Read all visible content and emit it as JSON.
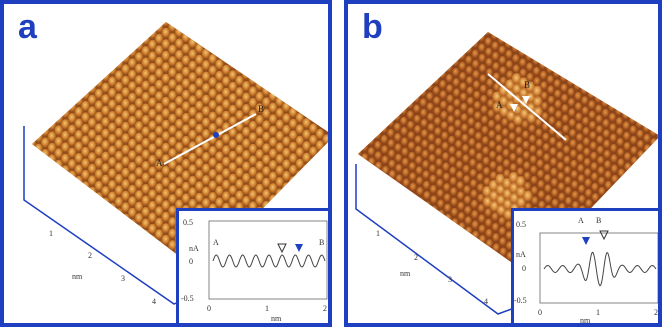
{
  "panels": [
    {
      "letter": "a",
      "axis_labels": {
        "ticks": [
          "1",
          "2",
          "3",
          "4"
        ],
        "unit": "nm"
      },
      "line_markers": {
        "start": "A",
        "end": "B"
      },
      "inset": {
        "ylabel": "nA",
        "yticks": [
          "0.5",
          "0",
          "-0.5"
        ],
        "xticks": [
          "0",
          "1",
          "2"
        ],
        "xlabel": "nm",
        "point_labels": {
          "start": "A",
          "end": "B"
        }
      }
    },
    {
      "letter": "b",
      "axis_labels": {
        "ticks": [
          "1",
          "2",
          "3",
          "4"
        ],
        "unit": "nm"
      },
      "line_markers": {
        "start": "A",
        "end": "B"
      },
      "inset": {
        "ylabel": "nA",
        "yticks": [
          "0.5",
          "0",
          "-0.5"
        ],
        "xticks": [
          "0",
          "1",
          "2"
        ],
        "xlabel": "nm",
        "point_labels": {
          "start": "A",
          "end": "B"
        }
      }
    }
  ],
  "colors": {
    "frame": "#1e3fc0",
    "surface_dark": "#7a3c12",
    "surface_mid": "#b8621f",
    "surface_light": "#f0b860",
    "profile": "#444444"
  },
  "icons": {
    "marker_filled": "filled-triangle-marker",
    "marker_open": "open-triangle-marker"
  }
}
